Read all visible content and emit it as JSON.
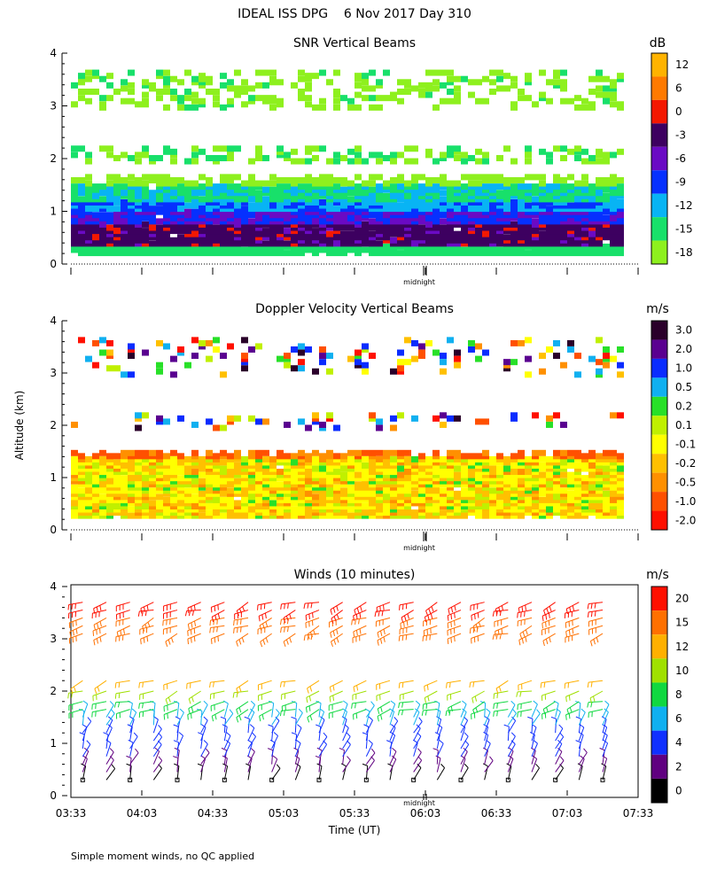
{
  "figure": {
    "title": "IDEAL ISS DPG    6 Nov 2017 Day 310",
    "y_axis_label": "Altitude (km)",
    "x_axis_label": "Time (UT)",
    "x_tick_labels": [
      "03:33",
      "04:03",
      "04:33",
      "05:03",
      "05:33",
      "06:03",
      "06:33",
      "07:03",
      "07:33"
    ],
    "midnight_label": "midnight",
    "footnote": "Simple moment winds, no QC applied"
  },
  "chart_data": [
    {
      "type": "heatmap",
      "title": "SNR Vertical Beams",
      "unit": "dB",
      "xlabel": "Time (UT)",
      "ylabel": "Altitude (km)",
      "x_range": [
        "03:33",
        "07:33"
      ],
      "ylim": [
        0,
        4
      ],
      "y_ticks": [
        0,
        1,
        2,
        3,
        4
      ],
      "colorbar": {
        "labels": [
          "12",
          "6",
          "0",
          "-3",
          "-6",
          "-9",
          "-12",
          "-15",
          "-18"
        ],
        "colors": [
          "#ffb300",
          "#ff7a00",
          "#f41800",
          "#3d0060",
          "#6a0ac4",
          "#0630ff",
          "#08b4f4",
          "#18e06a",
          "#8ef01e"
        ]
      },
      "layers": [
        {
          "desc": "strong low band",
          "alt_km": [
            0.35,
            0.7
          ],
          "snr_db": [
            0,
            -3
          ]
        },
        {
          "desc": "boundary layer",
          "alt_km": [
            0.2,
            1.4
          ],
          "snr_db": [
            -6,
            -15
          ]
        },
        {
          "desc": "elevated layer",
          "alt_km": [
            1.9,
            2.1
          ],
          "snr_db": [
            -15,
            -18
          ]
        },
        {
          "desc": "upper layer",
          "alt_km": [
            3.0,
            3.6
          ],
          "snr_db": [
            -15,
            -18
          ]
        }
      ]
    },
    {
      "type": "heatmap",
      "title": "Doppler Velocity Vertical Beams",
      "unit": "m/s",
      "xlabel": "Time (UT)",
      "ylabel": "Altitude (km)",
      "x_range": [
        "03:33",
        "07:33"
      ],
      "ylim": [
        0,
        4
      ],
      "y_ticks": [
        0,
        1,
        2,
        3,
        4
      ],
      "colorbar": {
        "labels": [
          "3.0",
          "2.0",
          "1.0",
          "0.5",
          "0.2",
          "0.1",
          "-0.1",
          "-0.2",
          "-0.5",
          "-1.0",
          "-2.0"
        ],
        "colors": [
          "#2a002a",
          "#5a0090",
          "#0a2cff",
          "#10b0f0",
          "#28e028",
          "#c0f000",
          "#ffff00",
          "#ffc000",
          "#ff9000",
          "#ff5000",
          "#ff1000"
        ]
      },
      "layers": [
        {
          "desc": "boundary layer",
          "alt_km": [
            0.2,
            1.4
          ],
          "velocity_ms": [
            -0.1,
            -0.5
          ]
        },
        {
          "desc": "upper layer",
          "alt_km": [
            3.0,
            3.6
          ],
          "velocity_ms": [
            -2.0,
            2.0
          ]
        }
      ]
    },
    {
      "type": "barbs",
      "title": "Winds (10 minutes)",
      "unit": "m/s",
      "xlabel": "Time (UT)",
      "ylabel": "Altitude (km)",
      "x_ticks": [
        "03:33",
        "04:03",
        "04:33",
        "05:03",
        "05:33",
        "06:03",
        "06:33",
        "07:03",
        "07:33"
      ],
      "ylim": [
        0,
        4
      ],
      "y_ticks": [
        0,
        1,
        2,
        3,
        4
      ],
      "colorbar": {
        "labels": [
          "20",
          "15",
          "12",
          "10",
          "8",
          "6",
          "4",
          "2",
          "0"
        ],
        "colors": [
          "#ff1000",
          "#ff7000",
          "#ffb000",
          "#a0e000",
          "#10d840",
          "#10b0f0",
          "#1030ff",
          "#600080",
          "#000000"
        ]
      },
      "profile_start_minutes": 5,
      "profile_interval_minutes": 10,
      "profile_count": 23,
      "profile_heights_km": [
        0.3,
        0.45,
        0.6,
        0.75,
        0.9,
        1.05,
        1.2,
        1.35,
        1.5,
        1.65,
        1.8,
        2.0,
        2.2,
        3.1,
        3.25,
        3.4,
        3.55,
        3.7
      ],
      "profile_speeds_ms": [
        1,
        2,
        3,
        4,
        4,
        5,
        5,
        6,
        7,
        8,
        9,
        10,
        12,
        14,
        15,
        16,
        17,
        18
      ]
    }
  ]
}
